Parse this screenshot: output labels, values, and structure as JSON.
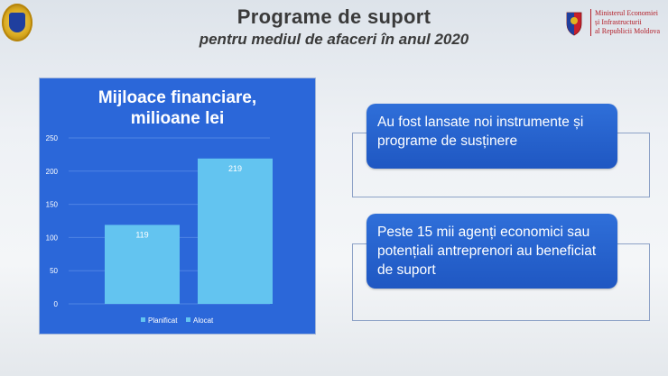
{
  "header": {
    "title": "Programe de suport",
    "subtitle": "pentru mediul de afaceri în anul 2020"
  },
  "ministry": {
    "line1": "Ministerul Economiei",
    "line2": "și Infrastructurii",
    "line3": "al Republicii Moldova"
  },
  "chart_data": {
    "type": "bar",
    "title_line1": "Mijloace financiare,",
    "title_line2": "milioane lei",
    "categories": [
      "Planificat",
      "Alocat"
    ],
    "values": [
      119,
      219
    ],
    "data_labels": [
      "119",
      "219"
    ],
    "ylim": [
      0,
      250
    ],
    "yticks": [
      0,
      50,
      100,
      150,
      200,
      250
    ],
    "grid": true,
    "legend": [
      "Planificat",
      "Alocat"
    ],
    "legend_position": "bottom",
    "bar_color": "#63c4f0",
    "background_color": "#2b67d9"
  },
  "boxes": [
    {
      "text": "Au fost lansate noi instrumente și programe de susținere"
    },
    {
      "text": "Peste 15 mii agenți economici sau potențiali antreprenori au beneficiat de suport"
    }
  ],
  "colors": {
    "box_blue": "#2563d0",
    "title_text": "#3a3a3a",
    "ministry_red": "#b3202a"
  }
}
